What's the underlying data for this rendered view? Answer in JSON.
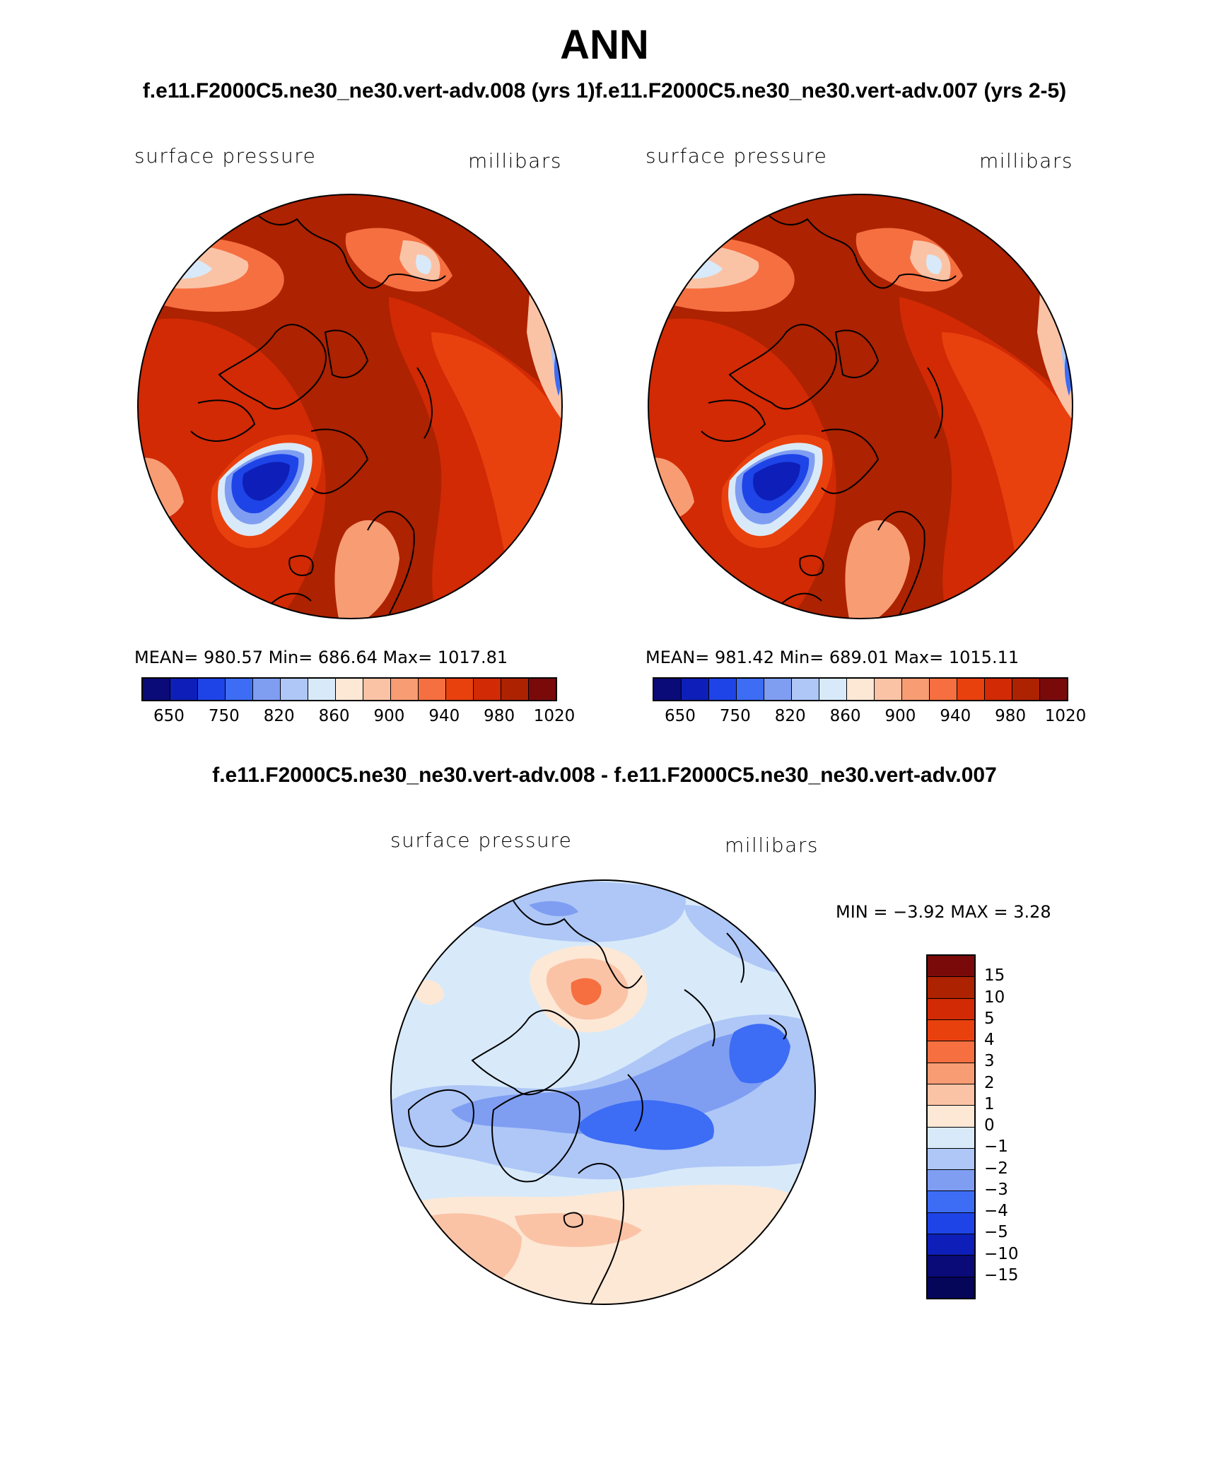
{
  "header": {
    "title": "ANN",
    "case_titles": "f.e11.F2000C5.ne30_ne30.vert-adv.008 (yrs 1)f.e11.F2000C5.ne30_ne30.vert-adv.007 (yrs 2-5)",
    "diff_title": "f.e11.F2000C5.ne30_ne30.vert-adv.008 - f.e11.F2000C5.ne30_ne30.vert-adv.007"
  },
  "panels": {
    "left": {
      "variable": "surface pressure",
      "units": "millibars",
      "stats": "MEAN= 980.57   Min= 686.64   Max= 1017.81"
    },
    "right": {
      "variable": "surface pressure",
      "units": "millibars",
      "stats": "MEAN= 981.42   Min= 689.01   Max= 1015.11"
    },
    "diff": {
      "variable": "surface pressure",
      "units": "millibars",
      "stats": "MIN =   −3.92  MAX =     3.28"
    }
  },
  "colorbar_abs": {
    "ticks": [
      "650",
      "750",
      "820",
      "860",
      "900",
      "940",
      "980",
      "1020"
    ],
    "colors": [
      "#0a0a78",
      "#0d1fb8",
      "#1e44e8",
      "#3d6cf5",
      "#7f9ef2",
      "#aec7f7",
      "#d8eaf9",
      "#fde8d6",
      "#fbc3a6",
      "#f89c74",
      "#f56f40",
      "#e9410e",
      "#d12a05",
      "#ad2200",
      "#7a0a0a"
    ]
  },
  "colorbar_diff": {
    "ticks": [
      "15",
      "10",
      "5",
      "4",
      "3",
      "2",
      "1",
      "0",
      "−1",
      "−2",
      "−3",
      "−4",
      "−5",
      "−10",
      "−15"
    ],
    "colors": [
      "#7a0a0a",
      "#ad2200",
      "#d12a05",
      "#e9410e",
      "#f56f40",
      "#f89c74",
      "#fbc3a6",
      "#fde8d6",
      "#d8eaf9",
      "#aec7f7",
      "#7f9ef2",
      "#3d6cf5",
      "#1e44e8",
      "#0d1fb8",
      "#0a0a78",
      "#05055a"
    ]
  }
}
